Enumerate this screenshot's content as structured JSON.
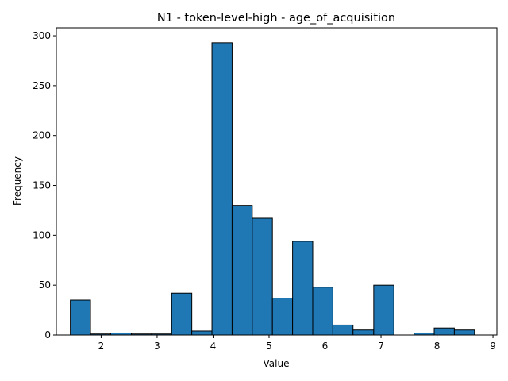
{
  "chart_data": {
    "type": "bar",
    "title": "N1 - token-level-high - age_of_acquisition",
    "xlabel": "Value",
    "ylabel": "Frequency",
    "xlim": [
      1.2,
      9.07
    ],
    "ylim": [
      0,
      308
    ],
    "xticks": [
      2,
      3,
      4,
      5,
      6,
      7,
      8,
      9
    ],
    "yticks": [
      0,
      50,
      100,
      150,
      200,
      250,
      300
    ],
    "bin_edges": [
      1.45,
      1.81,
      2.17,
      2.54,
      2.9,
      3.26,
      3.62,
      3.98,
      4.34,
      4.7,
      5.06,
      5.42,
      5.78,
      6.14,
      6.5,
      6.87,
      7.23,
      7.59,
      7.95,
      8.31,
      8.67
    ],
    "values": [
      35,
      1,
      2,
      1,
      1,
      42,
      4,
      293,
      130,
      117,
      37,
      94,
      48,
      10,
      5,
      50,
      0,
      2,
      7,
      5
    ],
    "grid": false,
    "legend": "none",
    "bar_color": "#1f77b4",
    "edge_color": "#000000"
  }
}
